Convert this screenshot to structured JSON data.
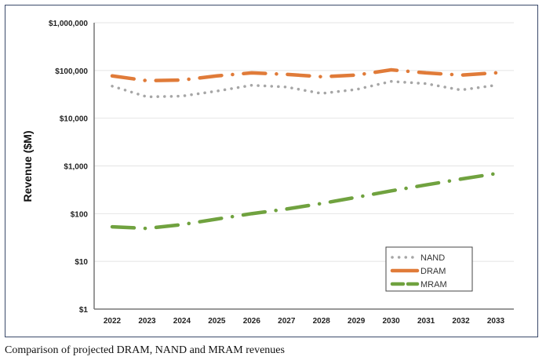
{
  "caption": "Comparison of projected DRAM, NAND and MRAM revenues",
  "chart_data": {
    "type": "line",
    "title": "",
    "xlabel": "",
    "ylabel": "Revenue ($M)",
    "yscale": "log",
    "ylim": [
      1,
      1000000
    ],
    "yticks": [
      1,
      10,
      100,
      1000,
      10000,
      100000,
      1000000
    ],
    "ytick_labels": [
      "$1",
      "$10",
      "$100",
      "$1,000",
      "$10,000",
      "$100,000",
      "$1,000,000"
    ],
    "x": [
      "2022",
      "2023",
      "2024",
      "2025",
      "2026",
      "2027",
      "2028",
      "2029",
      "2030",
      "2031",
      "2032",
      "2033"
    ],
    "grid": "horizontal",
    "legend_position": "bottom-right",
    "series": [
      {
        "name": "NAND",
        "color": "#a6a6a6",
        "style": "dotted",
        "values": [
          47000,
          28000,
          29000,
          37000,
          49000,
          45000,
          33000,
          40000,
          59000,
          53000,
          39000,
          49000
        ]
      },
      {
        "name": "DRAM",
        "color": "#e07b39",
        "style": "dash-dot",
        "values": [
          77000,
          61000,
          63000,
          77000,
          89000,
          83000,
          74000,
          80000,
          103000,
          89000,
          80000,
          89000
        ]
      },
      {
        "name": "MRAM",
        "color": "#70a23f",
        "style": "dash-dot",
        "values": [
          53,
          49,
          59,
          77,
          100,
          125,
          163,
          220,
          300,
          400,
          530,
          690
        ]
      }
    ]
  }
}
